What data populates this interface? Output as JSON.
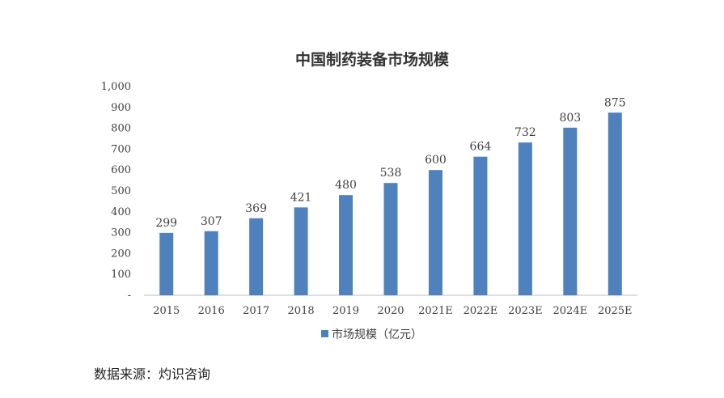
{
  "chart_data": {
    "type": "bar",
    "title": "中国制药装备市场规模",
    "categories": [
      "2015",
      "2016",
      "2017",
      "2018",
      "2019",
      "2020",
      "2021E",
      "2022E",
      "2023E",
      "2024E",
      "2025E"
    ],
    "series": [
      {
        "name": "市场规模（亿元）",
        "values": [
          299,
          307,
          369,
          421,
          480,
          538,
          600,
          664,
          732,
          803,
          875
        ]
      }
    ],
    "ylim": [
      0,
      1000
    ],
    "yticks": [
      0,
      100,
      200,
      300,
      400,
      500,
      600,
      700,
      800,
      900,
      1000
    ],
    "ytick_labels": [
      "-",
      "100",
      "200",
      "300",
      "400",
      "500",
      "600",
      "700",
      "800",
      "900",
      "1,000"
    ],
    "grid": false,
    "legend": "bottom",
    "colors": {
      "bar": "#4f81bd",
      "axis": "#bfbfbf"
    }
  },
  "source_text": "数据来源：灼识咨询"
}
